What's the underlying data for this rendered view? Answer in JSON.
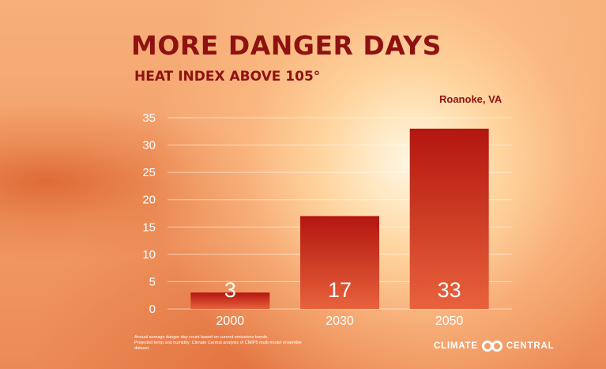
{
  "header": {
    "title": "MORE DANGER DAYS",
    "subtitle": "HEAT INDEX ABOVE 105°",
    "location": "Roanoke, VA"
  },
  "chart_data": {
    "type": "bar",
    "categories": [
      "2000",
      "2030",
      "2050"
    ],
    "values": [
      3,
      17,
      33
    ],
    "data_labels": [
      "3",
      "17",
      "33"
    ],
    "title": "MORE DANGER DAYS",
    "subtitle": "HEAT INDEX ABOVE 105°",
    "xlabel": "",
    "ylabel": "",
    "ylim": [
      0,
      35
    ],
    "yticks": [
      0,
      5,
      10,
      15,
      20,
      25,
      30,
      35
    ],
    "grid": true,
    "legend": "none",
    "colors": {
      "bar_top": "#b3160f",
      "bar_bottom": "#e8623c"
    }
  },
  "footnotes": [
    "Annual average danger day count based on current emissions trends.",
    "Projected temp and humidity: Climate Central analysis of CMIP5 multi-model ensemble",
    "dataset."
  ],
  "logo": {
    "left": "CLIMATE",
    "right": "CENTRAL"
  }
}
